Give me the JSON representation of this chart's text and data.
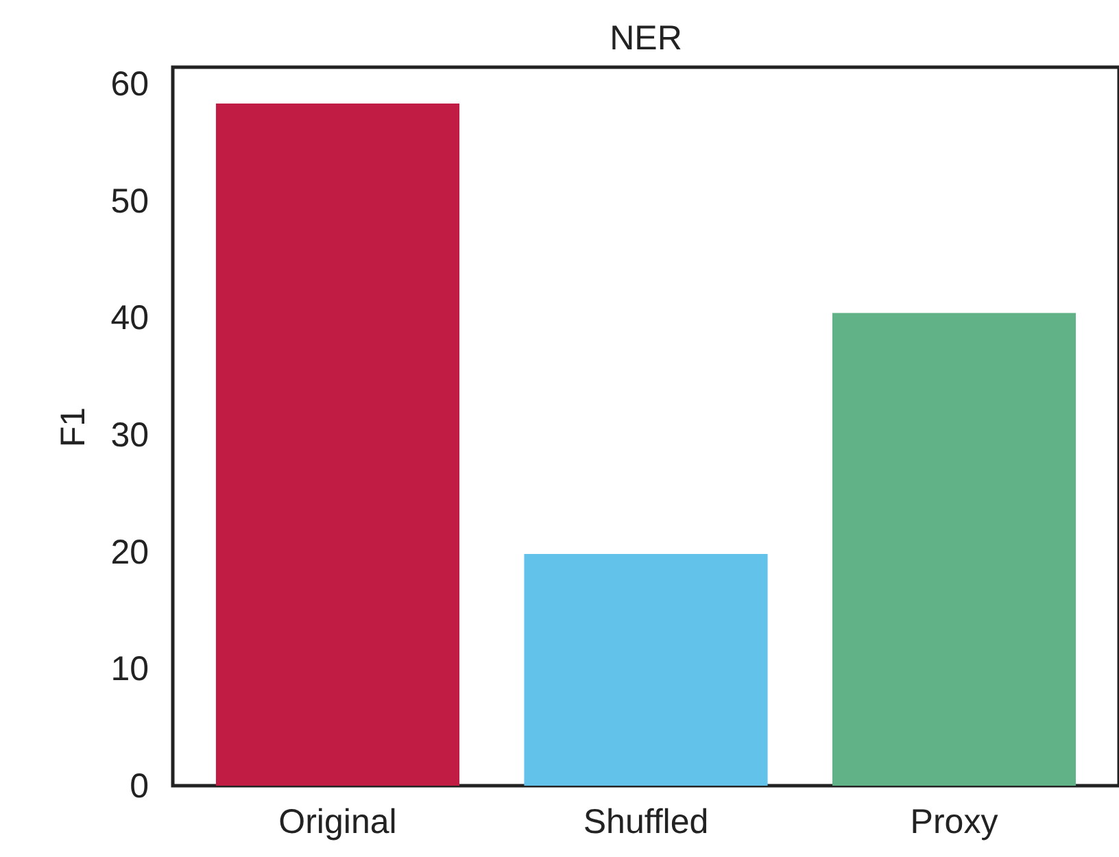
{
  "chart_data": {
    "type": "bar",
    "title": "NER",
    "ylabel": "F1",
    "categories": [
      "Original",
      "Shuffled",
      "Proxy"
    ],
    "values": [
      58.3,
      19.8,
      40.4
    ],
    "colors": [
      "#c01c44",
      "#63c2e9",
      "#62b287"
    ],
    "ylim": [
      0,
      61.4
    ],
    "yticks": [
      0,
      10,
      20,
      30,
      40,
      50,
      60
    ],
    "grid": false
  }
}
